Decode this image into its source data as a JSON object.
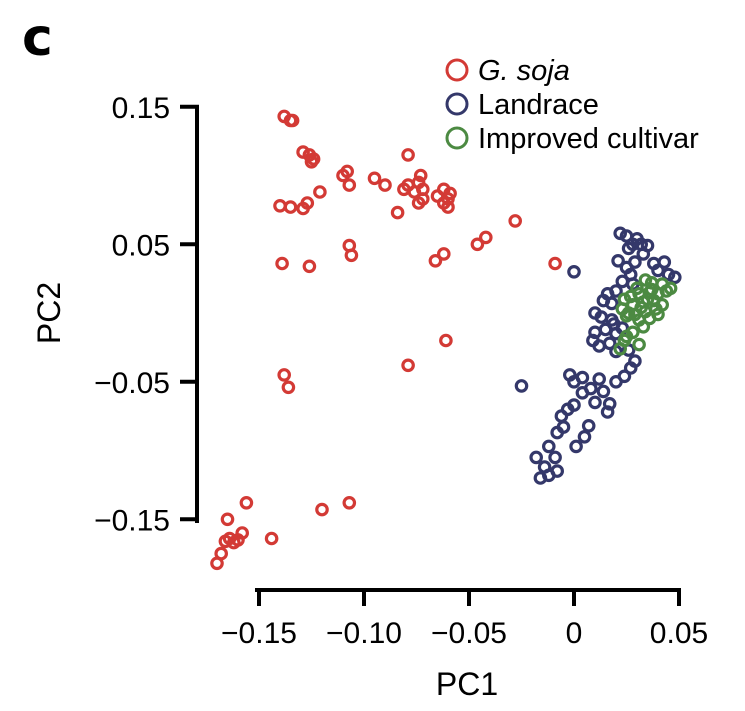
{
  "panel_label": "c",
  "chart_data": {
    "type": "scatter",
    "xlabel": "PC1",
    "ylabel": "PC2",
    "xlim": [
      -0.17,
      0.05
    ],
    "ylim": [
      -0.18,
      0.16
    ],
    "xticks": [
      -0.15,
      -0.1,
      -0.05,
      0,
      0.05
    ],
    "xtick_labels": [
      "−0.15",
      "−0.10",
      "−0.05",
      "0",
      "0.05"
    ],
    "yticks": [
      0.15,
      0.05,
      -0.05,
      -0.15
    ],
    "ytick_labels": [
      "0.15",
      "0.05",
      "−0.05",
      "−0.15"
    ],
    "legend": "top-right",
    "series": [
      {
        "name": "G. soja",
        "italic": true,
        "color": "#d33a35",
        "points": [
          [
            -0.138,
            0.143
          ],
          [
            -0.135,
            0.14
          ],
          [
            -0.134,
            0.14
          ],
          [
            -0.129,
            0.117
          ],
          [
            -0.126,
            0.115
          ],
          [
            -0.124,
            0.112
          ],
          [
            -0.125,
            0.11
          ],
          [
            -0.11,
            0.1
          ],
          [
            -0.108,
            0.103
          ],
          [
            -0.095,
            0.098
          ],
          [
            -0.09,
            0.093
          ],
          [
            -0.079,
            0.115
          ],
          [
            -0.079,
            0.093
          ],
          [
            -0.081,
            0.09
          ],
          [
            -0.073,
            0.1
          ],
          [
            -0.074,
            0.095
          ],
          [
            -0.072,
            0.09
          ],
          [
            -0.076,
            0.088
          ],
          [
            -0.065,
            0.085
          ],
          [
            -0.062,
            0.09
          ],
          [
            -0.059,
            0.087
          ],
          [
            -0.06,
            0.083
          ],
          [
            -0.062,
            0.08
          ],
          [
            -0.074,
            0.08
          ],
          [
            -0.107,
            0.093
          ],
          [
            -0.121,
            0.088
          ],
          [
            -0.14,
            0.078
          ],
          [
            -0.135,
            0.077
          ],
          [
            -0.129,
            0.076
          ],
          [
            -0.127,
            0.08
          ],
          [
            -0.084,
            0.073
          ],
          [
            -0.072,
            0.083
          ],
          [
            -0.06,
            0.077
          ],
          [
            -0.042,
            0.055
          ],
          [
            -0.046,
            0.05
          ],
          [
            -0.028,
            0.067
          ],
          [
            -0.062,
            0.043
          ],
          [
            -0.066,
            0.038
          ],
          [
            -0.107,
            0.049
          ],
          [
            -0.106,
            0.042
          ],
          [
            -0.139,
            0.036
          ],
          [
            -0.126,
            0.034
          ],
          [
            -0.009,
            0.036
          ],
          [
            -0.061,
            -0.02
          ],
          [
            -0.079,
            -0.038
          ],
          [
            -0.138,
            -0.045
          ],
          [
            -0.136,
            -0.054
          ],
          [
            -0.107,
            -0.138
          ],
          [
            -0.12,
            -0.143
          ],
          [
            -0.156,
            -0.138
          ],
          [
            -0.165,
            -0.15
          ],
          [
            -0.164,
            -0.164
          ],
          [
            -0.158,
            -0.16
          ],
          [
            -0.16,
            -0.165
          ],
          [
            -0.162,
            -0.167
          ],
          [
            -0.166,
            -0.166
          ],
          [
            -0.168,
            -0.175
          ],
          [
            -0.17,
            -0.182
          ],
          [
            -0.144,
            -0.164
          ]
        ]
      },
      {
        "name": "Landrace",
        "italic": false,
        "color": "#34386a",
        "points": [
          [
            0.022,
            0.058
          ],
          [
            0.025,
            0.056
          ],
          [
            0.03,
            0.054
          ],
          [
            0.032,
            0.05
          ],
          [
            0.026,
            0.047
          ],
          [
            0.028,
            0.05
          ],
          [
            0.035,
            0.049
          ],
          [
            0.033,
            0.043
          ],
          [
            0.029,
            0.037
          ],
          [
            0.038,
            0.036
          ],
          [
            0.043,
            0.037
          ],
          [
            0.04,
            0.031
          ],
          [
            0.045,
            0.028
          ],
          [
            0.048,
            0.026
          ],
          [
            0.021,
            0.038
          ],
          [
            0.025,
            0.033
          ],
          [
            0.027,
            0.028
          ],
          [
            0.023,
            0.023
          ],
          [
            0.028,
            0.021
          ],
          [
            0.02,
            0.016
          ],
          [
            0.016,
            0.014
          ],
          [
            0.014,
            0.009
          ],
          [
            0.018,
            0.007
          ],
          [
            0.01,
            0.0
          ],
          [
            0.013,
            -0.003
          ],
          [
            0.018,
            -0.005
          ],
          [
            0.019,
            -0.008
          ],
          [
            0.023,
            -0.011
          ],
          [
            0.02,
            -0.015
          ],
          [
            0.015,
            -0.012
          ],
          [
            0.01,
            -0.014
          ],
          [
            0.009,
            -0.02
          ],
          [
            0.012,
            -0.024
          ],
          [
            0.017,
            -0.022
          ],
          [
            0.02,
            -0.028
          ],
          [
            0.026,
            -0.027
          ],
          [
            0.029,
            -0.035
          ],
          [
            0.027,
            -0.04
          ],
          [
            0.024,
            -0.046
          ],
          [
            0.02,
            -0.05
          ],
          [
            0.012,
            -0.048
          ],
          [
            0.008,
            -0.055
          ],
          [
            0.014,
            -0.057
          ],
          [
            0.01,
            -0.065
          ],
          [
            0.004,
            -0.058
          ],
          [
            0.0,
            -0.05
          ],
          [
            -0.002,
            -0.045
          ],
          [
            0.004,
            -0.047
          ],
          [
            0.0,
            -0.067
          ],
          [
            -0.006,
            -0.075
          ],
          [
            -0.005,
            -0.083
          ],
          [
            -0.008,
            -0.087
          ],
          [
            -0.012,
            -0.097
          ],
          [
            -0.009,
            -0.105
          ],
          [
            0.001,
            -0.097
          ],
          [
            0.005,
            -0.09
          ],
          [
            0.007,
            -0.082
          ],
          [
            0.016,
            -0.072
          ],
          [
            0.017,
            -0.066
          ],
          [
            -0.003,
            -0.07
          ],
          [
            -0.018,
            -0.105
          ],
          [
            -0.014,
            -0.112
          ],
          [
            -0.016,
            -0.12
          ],
          [
            -0.012,
            -0.118
          ],
          [
            -0.008,
            -0.115
          ],
          [
            -0.025,
            -0.053
          ],
          [
            0.0,
            0.03
          ]
        ]
      },
      {
        "name": "Improved cultivar",
        "italic": false,
        "color": "#4c8a42",
        "points": [
          [
            0.034,
            0.024
          ],
          [
            0.037,
            0.022
          ],
          [
            0.042,
            0.021
          ],
          [
            0.046,
            0.018
          ],
          [
            0.044,
            0.016
          ],
          [
            0.04,
            0.014
          ],
          [
            0.036,
            0.015
          ],
          [
            0.031,
            0.014
          ],
          [
            0.027,
            0.012
          ],
          [
            0.024,
            0.01
          ],
          [
            0.028,
            0.006
          ],
          [
            0.033,
            0.008
          ],
          [
            0.038,
            0.009
          ],
          [
            0.042,
            0.006
          ],
          [
            0.039,
            0.003
          ],
          [
            0.034,
            0.001
          ],
          [
            0.029,
            -0.001
          ],
          [
            0.025,
            -0.002
          ],
          [
            0.023,
            0.003
          ],
          [
            0.026,
            0.0
          ],
          [
            0.031,
            -0.005
          ],
          [
            0.036,
            -0.004
          ],
          [
            0.04,
            -0.001
          ],
          [
            0.033,
            -0.01
          ],
          [
            0.028,
            -0.014
          ],
          [
            0.024,
            -0.02
          ],
          [
            0.022,
            -0.026
          ],
          [
            0.025,
            -0.017
          ],
          [
            0.031,
            -0.023
          ],
          [
            0.035,
            0.01
          ],
          [
            0.03,
            0.018
          ],
          [
            0.037,
            0.017
          ],
          [
            0.032,
            0.004
          ]
        ]
      }
    ]
  }
}
